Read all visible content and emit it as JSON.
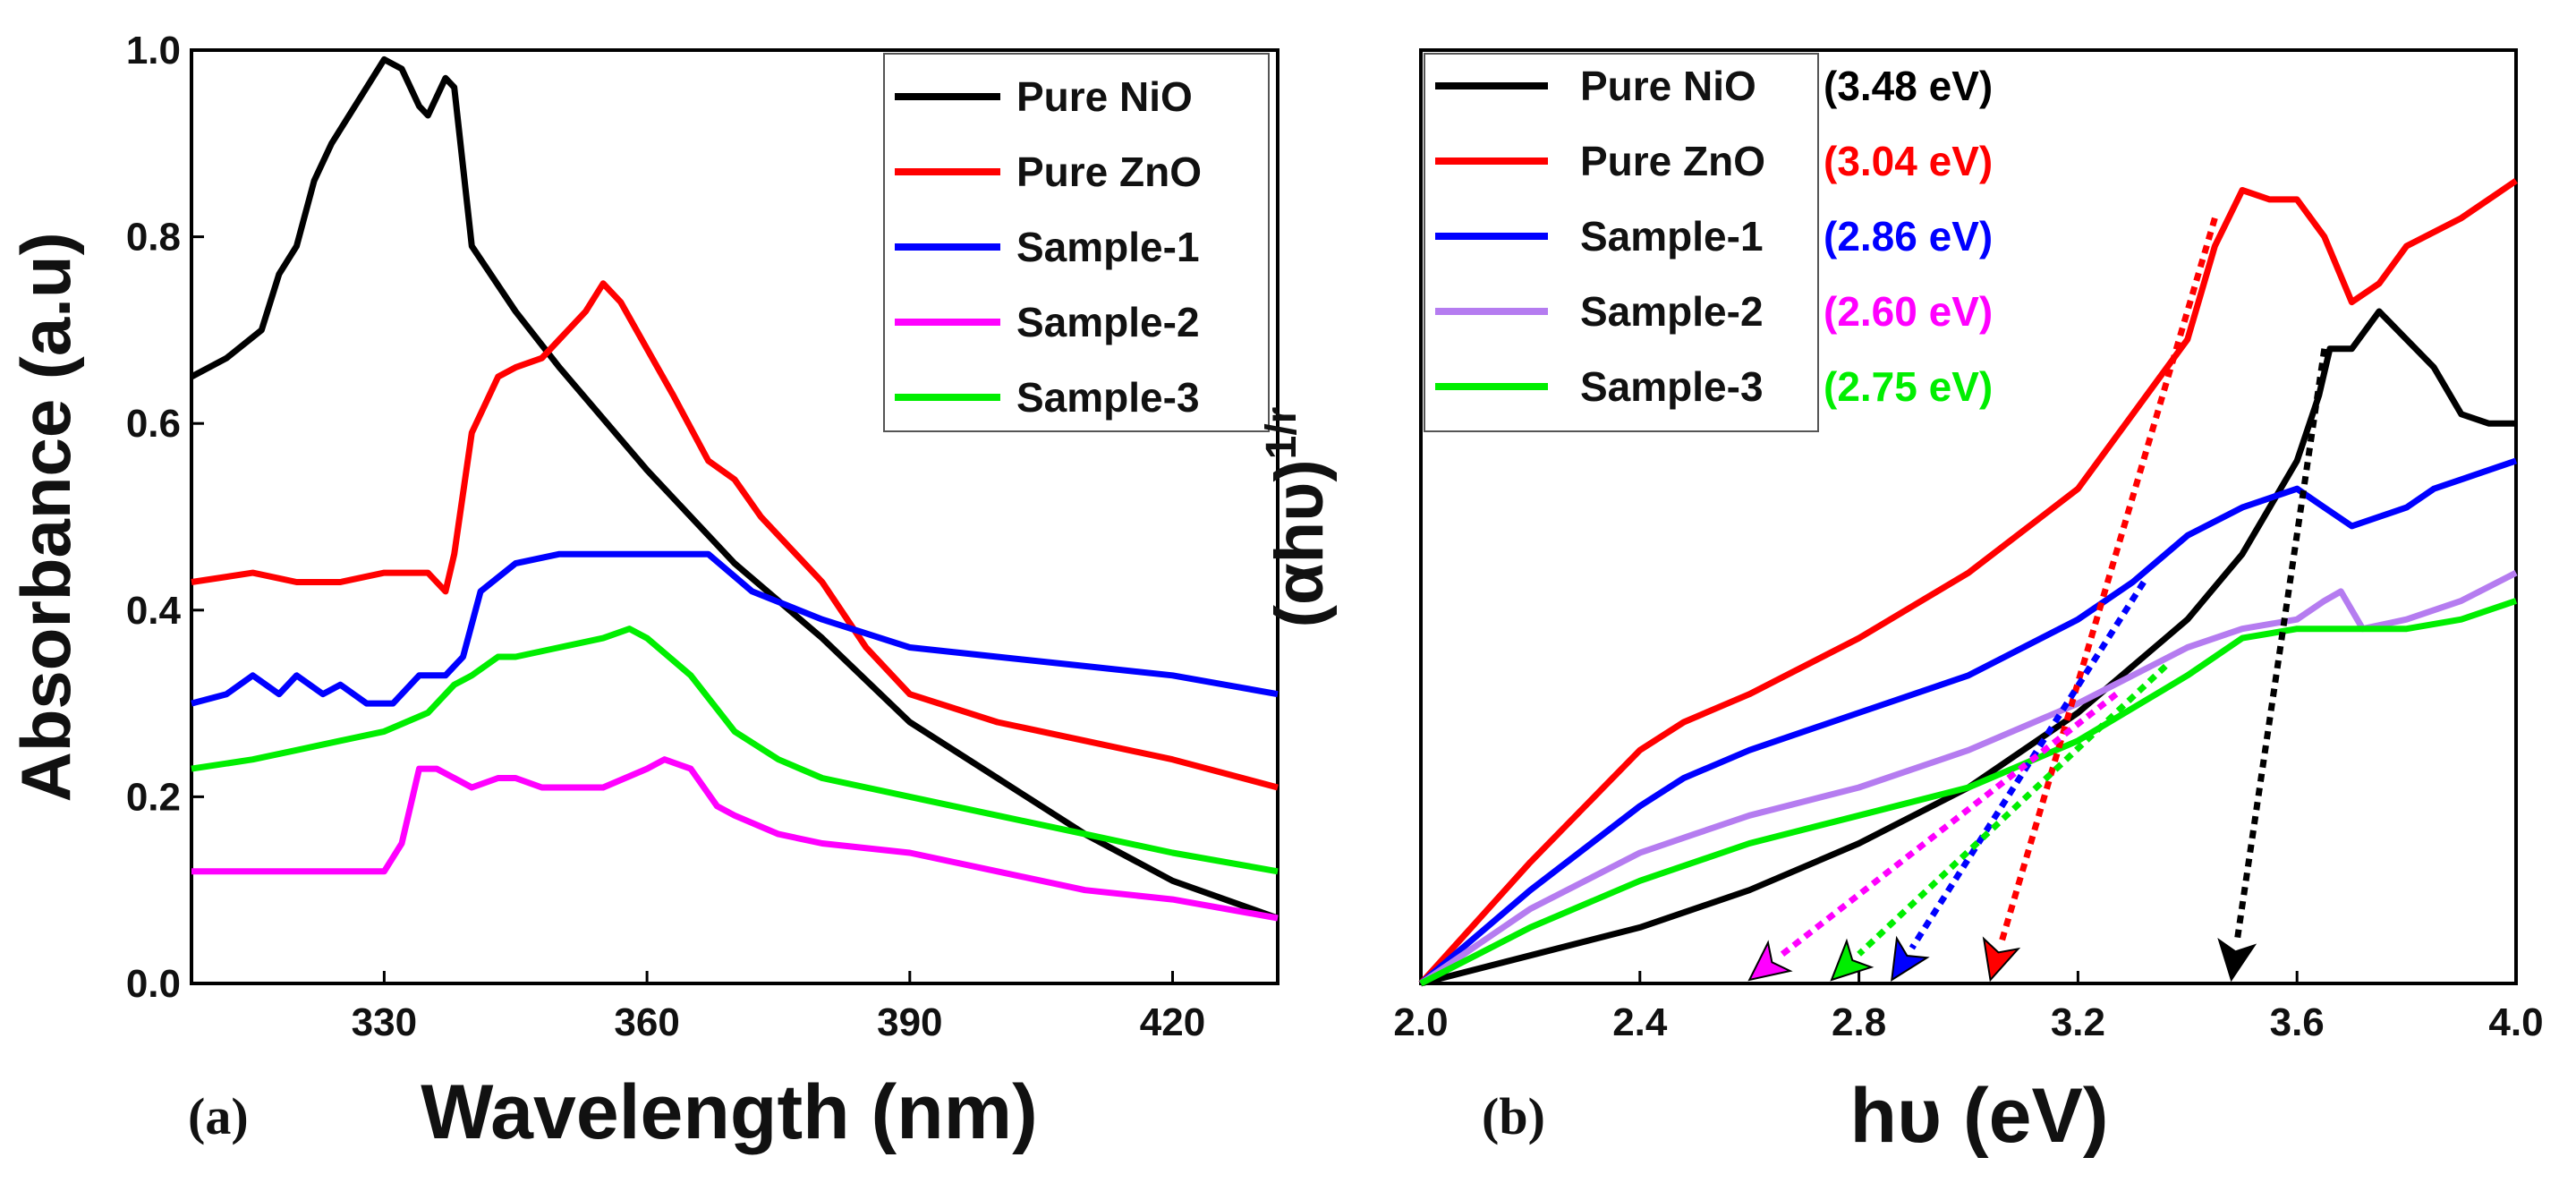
{
  "chart_data": [
    {
      "type": "line",
      "panel_label": "(a)",
      "xlabel": "Wavelength (nm)",
      "ylabel": "Absorbance (a.u)",
      "xlim": [
        308,
        432
      ],
      "ylim": [
        0.0,
        1.0
      ],
      "xticks": [
        330,
        360,
        390,
        420
      ],
      "yticks": [
        0.0,
        0.2,
        0.4,
        0.6,
        0.8,
        1.0
      ],
      "xtick_labels": [
        "330",
        "360",
        "390",
        "420"
      ],
      "ytick_labels": [
        "0.0",
        "0.2",
        "0.4",
        "0.6",
        "0.8",
        "1.0"
      ],
      "legend_position": "top-right",
      "series": [
        {
          "name": "Pure NiO",
          "color": "#000000",
          "x": [
            308,
            312,
            316,
            318,
            320,
            322,
            324,
            326,
            328,
            330,
            332,
            334,
            335,
            337,
            338,
            340,
            345,
            350,
            360,
            370,
            380,
            390,
            400,
            410,
            420,
            432
          ],
          "y": [
            0.65,
            0.67,
            0.7,
            0.76,
            0.79,
            0.86,
            0.9,
            0.93,
            0.96,
            0.99,
            0.98,
            0.94,
            0.93,
            0.97,
            0.96,
            0.79,
            0.72,
            0.66,
            0.55,
            0.45,
            0.37,
            0.28,
            0.22,
            0.16,
            0.11,
            0.07
          ]
        },
        {
          "name": "Pure ZnO",
          "color": "#ff0000",
          "x": [
            308,
            315,
            320,
            325,
            330,
            335,
            337,
            338,
            340,
            343,
            345,
            348,
            350,
            353,
            355,
            357,
            360,
            363,
            367,
            370,
            373,
            380,
            385,
            390,
            400,
            410,
            420,
            432
          ],
          "y": [
            0.43,
            0.44,
            0.43,
            0.43,
            0.44,
            0.44,
            0.42,
            0.46,
            0.59,
            0.65,
            0.66,
            0.67,
            0.69,
            0.72,
            0.75,
            0.73,
            0.68,
            0.63,
            0.56,
            0.54,
            0.5,
            0.43,
            0.36,
            0.31,
            0.28,
            0.26,
            0.24,
            0.21
          ]
        },
        {
          "name": "Sample-1",
          "color": "#0000ff",
          "x": [
            308,
            312,
            315,
            318,
            320,
            323,
            325,
            328,
            331,
            334,
            337,
            339,
            341,
            345,
            350,
            360,
            367,
            372,
            380,
            390,
            400,
            410,
            420,
            432
          ],
          "y": [
            0.3,
            0.31,
            0.33,
            0.31,
            0.33,
            0.31,
            0.32,
            0.3,
            0.3,
            0.33,
            0.33,
            0.35,
            0.42,
            0.45,
            0.46,
            0.46,
            0.46,
            0.42,
            0.39,
            0.36,
            0.35,
            0.34,
            0.33,
            0.31
          ]
        },
        {
          "name": "Sample-2",
          "color": "#ff00ff",
          "x": [
            308,
            315,
            320,
            325,
            330,
            332,
            334,
            336,
            338,
            340,
            343,
            345,
            348,
            350,
            355,
            360,
            362,
            365,
            368,
            370,
            375,
            380,
            390,
            400,
            410,
            420,
            432
          ],
          "y": [
            0.12,
            0.12,
            0.12,
            0.12,
            0.12,
            0.15,
            0.23,
            0.23,
            0.22,
            0.21,
            0.22,
            0.22,
            0.21,
            0.21,
            0.21,
            0.23,
            0.24,
            0.23,
            0.19,
            0.18,
            0.16,
            0.15,
            0.14,
            0.12,
            0.1,
            0.09,
            0.07
          ]
        },
        {
          "name": "Sample-3",
          "color": "#00ee00",
          "x": [
            308,
            315,
            320,
            325,
            330,
            335,
            338,
            340,
            343,
            345,
            350,
            355,
            358,
            360,
            365,
            370,
            375,
            380,
            390,
            400,
            410,
            420,
            432
          ],
          "y": [
            0.23,
            0.24,
            0.25,
            0.26,
            0.27,
            0.29,
            0.32,
            0.33,
            0.35,
            0.35,
            0.36,
            0.37,
            0.38,
            0.37,
            0.33,
            0.27,
            0.24,
            0.22,
            0.2,
            0.18,
            0.16,
            0.14,
            0.12
          ]
        }
      ]
    },
    {
      "type": "line",
      "panel_label": "(b)",
      "xlabel": "hυ (eV)",
      "ylabel_base": "(αhυ)",
      "ylabel_sup": "1/r",
      "xlim": [
        2.0,
        4.0
      ],
      "ylim": [
        0,
        1
      ],
      "xticks": [
        2.0,
        2.4,
        2.8,
        3.2,
        3.6,
        4.0
      ],
      "xtick_labels": [
        "2.0",
        "2.4",
        "2.8",
        "3.2",
        "3.6",
        "4.0"
      ],
      "legend_position": "top-left",
      "series": [
        {
          "name": "Pure NiO",
          "gap_label": "(3.48 eV)",
          "band_gap": 3.48,
          "color": "#000000",
          "tangent_color": "#000000",
          "x": [
            2.0,
            2.2,
            2.4,
            2.6,
            2.8,
            3.0,
            3.2,
            3.4,
            3.5,
            3.6,
            3.64,
            3.66,
            3.7,
            3.75,
            3.8,
            3.85,
            3.9,
            3.95,
            4.0
          ],
          "y": [
            0.0,
            0.03,
            0.06,
            0.1,
            0.15,
            0.21,
            0.29,
            0.39,
            0.46,
            0.56,
            0.63,
            0.68,
            0.68,
            0.72,
            0.69,
            0.66,
            0.61,
            0.6,
            0.6
          ],
          "tangent_top": [
            3.65,
            0.68
          ]
        },
        {
          "name": "Pure ZnO",
          "gap_label": "(3.04 eV)",
          "band_gap": 3.04,
          "color": "#ff0000",
          "tangent_color": "#ff0000",
          "x": [
            2.0,
            2.2,
            2.4,
            2.48,
            2.6,
            2.8,
            3.0,
            3.2,
            3.3,
            3.4,
            3.45,
            3.5,
            3.55,
            3.6,
            3.65,
            3.7,
            3.75,
            3.8,
            3.9,
            4.0
          ],
          "y": [
            0.0,
            0.13,
            0.25,
            0.28,
            0.31,
            0.37,
            0.44,
            0.53,
            0.61,
            0.69,
            0.79,
            0.85,
            0.84,
            0.84,
            0.8,
            0.73,
            0.75,
            0.79,
            0.82,
            0.86
          ],
          "tangent_top": [
            3.45,
            0.82
          ]
        },
        {
          "name": "Sample-1",
          "gap_label": "(2.86 eV)",
          "band_gap": 2.86,
          "color": "#0000ff",
          "tangent_color": "#0000ff",
          "x": [
            2.0,
            2.2,
            2.4,
            2.48,
            2.6,
            2.8,
            3.0,
            3.2,
            3.3,
            3.4,
            3.5,
            3.6,
            3.65,
            3.7,
            3.8,
            3.85,
            3.9,
            4.0
          ],
          "y": [
            0.0,
            0.1,
            0.19,
            0.22,
            0.25,
            0.29,
            0.33,
            0.39,
            0.43,
            0.48,
            0.51,
            0.53,
            0.51,
            0.49,
            0.51,
            0.53,
            0.54,
            0.56
          ],
          "tangent_top": [
            3.32,
            0.43
          ]
        },
        {
          "name": "Sample-2",
          "gap_label": "(2.60 eV)",
          "band_gap": 2.6,
          "color": "#b57cf0",
          "text_color": "#ff00ff",
          "tangent_color": "#ff00ff",
          "x": [
            2.0,
            2.2,
            2.4,
            2.5,
            2.6,
            2.8,
            3.0,
            3.2,
            3.4,
            3.5,
            3.6,
            3.65,
            3.68,
            3.72,
            3.8,
            3.9,
            4.0
          ],
          "y": [
            0.0,
            0.08,
            0.14,
            0.16,
            0.18,
            0.21,
            0.25,
            0.3,
            0.36,
            0.38,
            0.39,
            0.41,
            0.42,
            0.38,
            0.39,
            0.41,
            0.44
          ],
          "tangent_top": [
            3.27,
            0.31
          ]
        },
        {
          "name": "Sample-3",
          "gap_label": "(2.75 eV)",
          "band_gap": 2.75,
          "color": "#00ee00",
          "tangent_color": "#00ee00",
          "x": [
            2.0,
            2.2,
            2.4,
            2.6,
            2.8,
            3.0,
            3.2,
            3.4,
            3.5,
            3.6,
            3.7,
            3.8,
            3.9,
            4.0
          ],
          "y": [
            0.0,
            0.06,
            0.11,
            0.15,
            0.18,
            0.21,
            0.26,
            0.33,
            0.37,
            0.38,
            0.38,
            0.38,
            0.39,
            0.41
          ],
          "tangent_top": [
            3.36,
            0.34
          ]
        }
      ]
    }
  ]
}
